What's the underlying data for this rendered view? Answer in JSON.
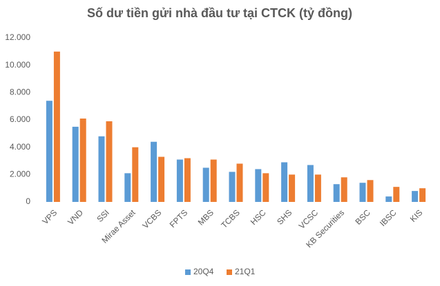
{
  "chart_data": {
    "type": "bar",
    "title": "Số dư tiền gửi nhà đầu tư tại CTCK (tỷ đồng)",
    "categories": [
      "VPS",
      "VND",
      "SSI",
      "Mirae Asset",
      "VCBS",
      "FPTS",
      "MBS",
      "TCBS",
      "HSC",
      "SHS",
      "VCSC",
      "KB Securities",
      "BSC",
      "IBSC",
      "KIS"
    ],
    "series": [
      {
        "name": "20Q4",
        "color": "#5b9bd5",
        "values": [
          7400,
          5500,
          4800,
          2100,
          4400,
          3100,
          2500,
          2200,
          2400,
          2900,
          2700,
          1300,
          1400,
          400,
          800
        ]
      },
      {
        "name": "21Q1",
        "color": "#ed7d31",
        "values": [
          11000,
          6100,
          5900,
          4000,
          3300,
          3200,
          3100,
          2800,
          2100,
          2000,
          2000,
          1800,
          1600,
          1100,
          1000
        ]
      }
    ],
    "ylim": [
      0,
      12000
    ],
    "yticks": [
      0,
      {
        "value": 2000,
        "label": "2.000"
      },
      {
        "value": 4000,
        "label": "4.000"
      },
      {
        "value": 6000,
        "label": "6.000"
      },
      {
        "value": 8000,
        "label": "8.000"
      },
      {
        "value": 10000,
        "label": "10.000"
      },
      {
        "value": 12000,
        "label": "12.000"
      }
    ],
    "grid": false,
    "legend": "bottom"
  }
}
